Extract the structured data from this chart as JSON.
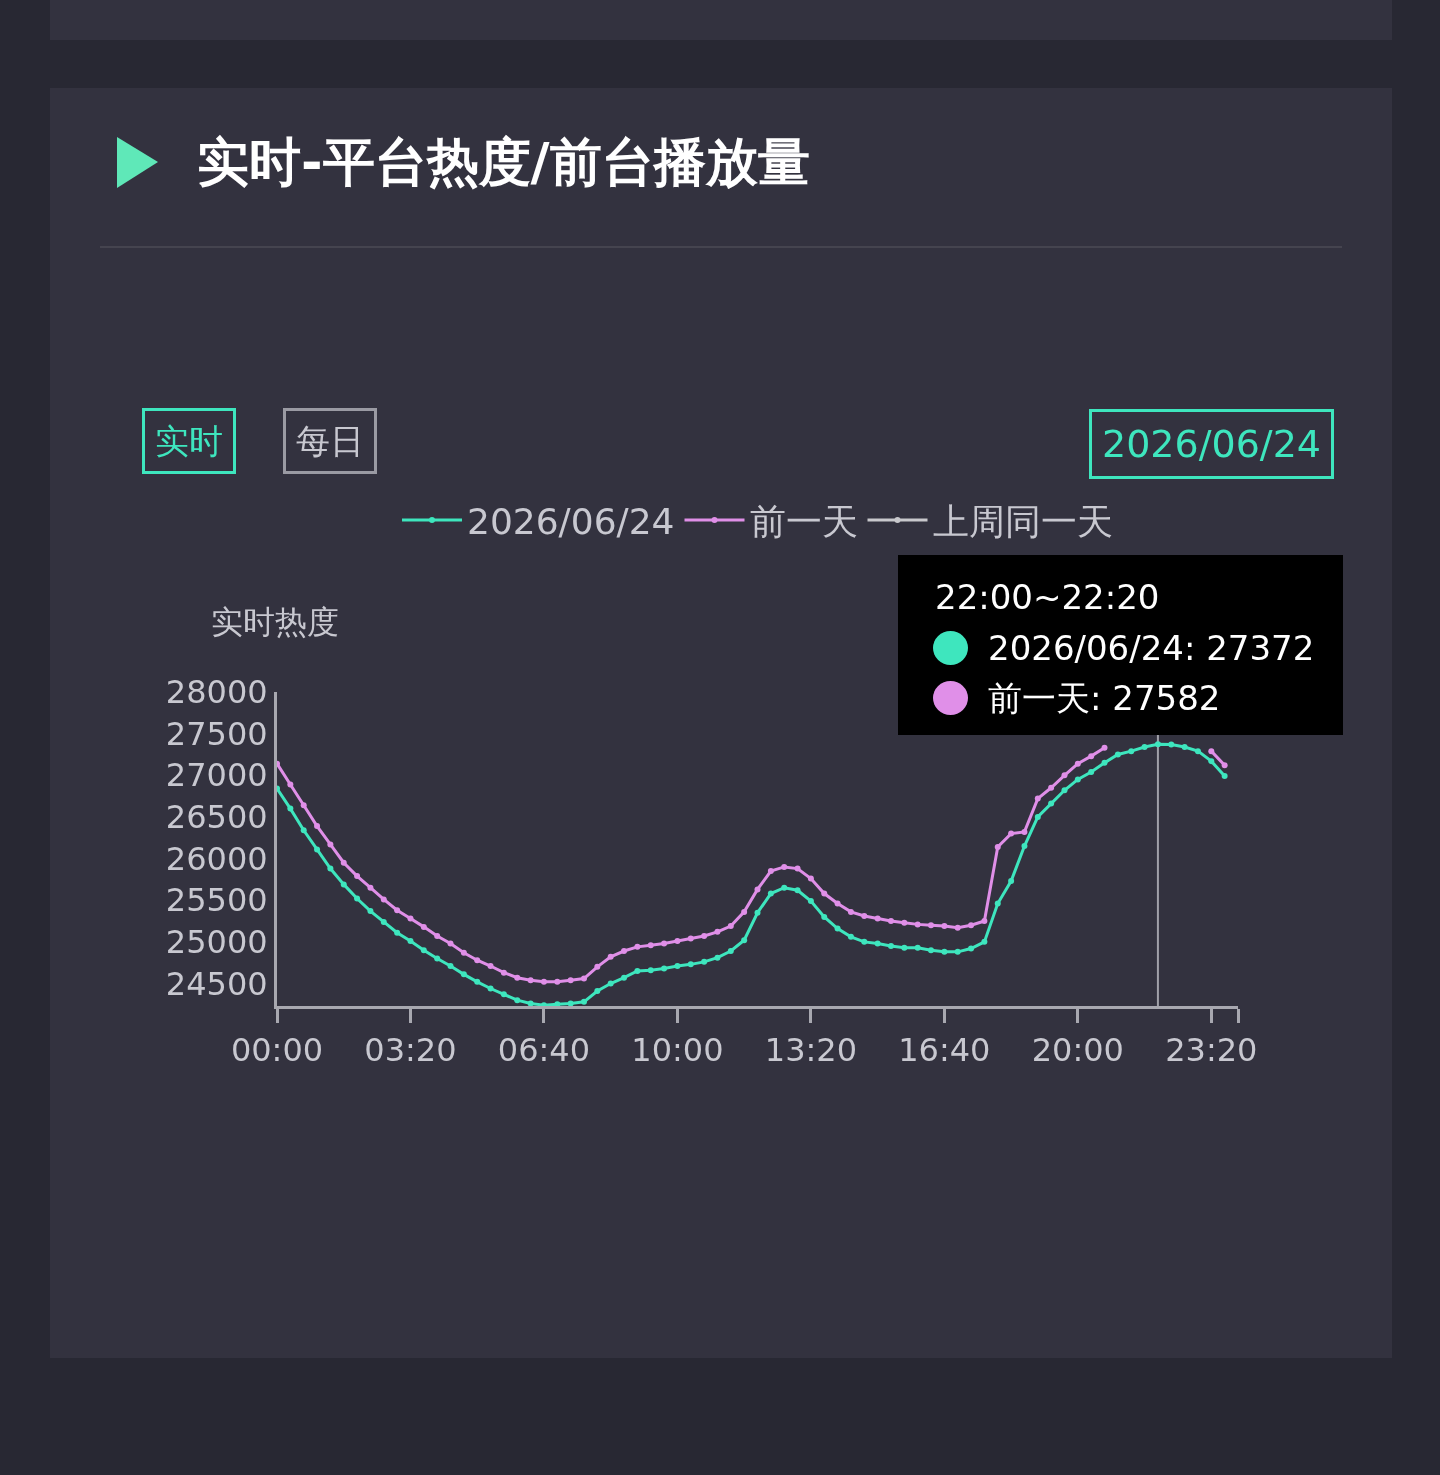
{
  "chart_data": {
    "type": "line",
    "title": "实时-平台热度/前台播放量",
    "ylabel": "实时热度",
    "annotations": [
      "实时",
      "每日",
      "2026/06/24",
      "22:00~22:20",
      "2026/06/24: 27372",
      "前一天: 27582"
    ],
    "x": [
      0,
      0.3333,
      0.6667,
      1,
      1.3333,
      1.6667,
      2,
      2.3333,
      2.6667,
      3,
      3.3333,
      3.6667,
      4,
      4.3333,
      4.6667,
      5,
      5.3333,
      5.6667,
      6,
      6.3333,
      6.6667,
      7,
      7.3333,
      7.6667,
      8,
      8.3333,
      8.6667,
      9,
      9.3333,
      9.6667,
      10,
      10.3333,
      10.6667,
      11,
      11.3333,
      11.6667,
      12,
      12.3333,
      12.6667,
      13,
      13.3333,
      13.6667,
      14,
      14.3333,
      14.6667,
      15,
      15.3333,
      15.6667,
      16,
      16.3333,
      16.6667,
      17,
      17.3333,
      17.6667,
      18,
      18.3333,
      18.6667,
      19,
      19.3333,
      19.6667,
      20,
      20.3333,
      20.6667,
      21,
      21.3333,
      21.6667,
      22,
      22.3333,
      22.6667,
      23,
      23.3333,
      23.6667
    ],
    "series": [
      {
        "name": "2026/06/24",
        "color": "#3ee6be",
        "values": [
          26840,
          26600,
          26340,
          26110,
          25880,
          25690,
          25520,
          25370,
          25240,
          25110,
          25010,
          24900,
          24800,
          24710,
          24610,
          24520,
          24440,
          24370,
          24300,
          24260,
          24240,
          24250,
          24260,
          24280,
          24410,
          24500,
          24570,
          24650,
          24660,
          24680,
          24710,
          24730,
          24760,
          24810,
          24890,
          25020,
          25350,
          25580,
          25650,
          25620,
          25490,
          25300,
          25160,
          25060,
          25000,
          24980,
          24950,
          24930,
          24930,
          24900,
          24880,
          24880,
          24920,
          25000,
          25460,
          25730,
          26150,
          26500,
          26660,
          26820,
          26950,
          27040,
          27150,
          27250,
          27290,
          27340,
          27372,
          27370,
          27340,
          27290,
          27170,
          26990
        ]
      },
      {
        "name": "前一天",
        "color": "#e08fe8",
        "values": [
          27140,
          26890,
          26640,
          26390,
          26170,
          25950,
          25790,
          25650,
          25510,
          25380,
          25280,
          25180,
          25070,
          24980,
          24870,
          24780,
          24710,
          24630,
          24570,
          24540,
          24520,
          24520,
          24540,
          24560,
          24700,
          24820,
          24890,
          24940,
          24960,
          24980,
          25010,
          25040,
          25070,
          25120,
          25190,
          25360,
          25630,
          25850,
          25900,
          25880,
          25760,
          25580,
          25460,
          25360,
          25310,
          25280,
          25250,
          25230,
          25210,
          25200,
          25190,
          25170,
          25200,
          25250,
          26140,
          26300,
          26320,
          26720,
          26850,
          27000,
          27140,
          27230,
          27330,
          null,
          null,
          null,
          null,
          null,
          null,
          null,
          27290,
          27120
        ]
      },
      {
        "name": "上周同一天",
        "color": "#c8c8cc",
        "values": [
          null,
          null,
          null,
          null,
          null,
          null,
          null,
          null,
          null,
          null,
          null,
          null,
          null,
          null,
          null,
          null,
          null,
          null,
          null,
          null,
          null,
          null,
          null,
          null,
          null,
          null,
          null,
          null,
          null,
          null,
          null,
          null,
          null,
          null,
          null,
          null,
          null,
          null,
          null,
          null,
          null,
          null,
          null,
          null,
          null,
          null,
          null,
          null,
          null,
          null,
          null,
          null,
          null,
          null,
          null,
          null,
          null,
          null,
          null,
          null,
          null,
          null,
          null,
          null,
          null,
          null,
          null,
          null,
          null,
          null,
          null,
          null
        ]
      }
    ],
    "xlim": [
      0,
      24
    ],
    "xticks": [
      {
        "value": 0,
        "label": "00:00"
      },
      {
        "value": 3.3333,
        "label": "03:20"
      },
      {
        "value": 6.6667,
        "label": "06:40"
      },
      {
        "value": 10,
        "label": "10:00"
      },
      {
        "value": 13.3333,
        "label": "13:20"
      },
      {
        "value": 16.6667,
        "label": "16:40"
      },
      {
        "value": 20,
        "label": "20:00"
      },
      {
        "value": 23.3333,
        "label": "23:20"
      },
      {
        "value": 24,
        "label": null
      }
    ],
    "ylim": [
      24230,
      28000
    ],
    "yticks": [
      24500,
      25000,
      25500,
      26000,
      26500,
      27000,
      27500,
      28000
    ],
    "ref_lines": [
      {
        "axis": "x",
        "value": 22,
        "color": "#a0a0a8"
      }
    ],
    "legend": "top",
    "grid": false,
    "marker": "circle",
    "line_style": "solid"
  }
}
